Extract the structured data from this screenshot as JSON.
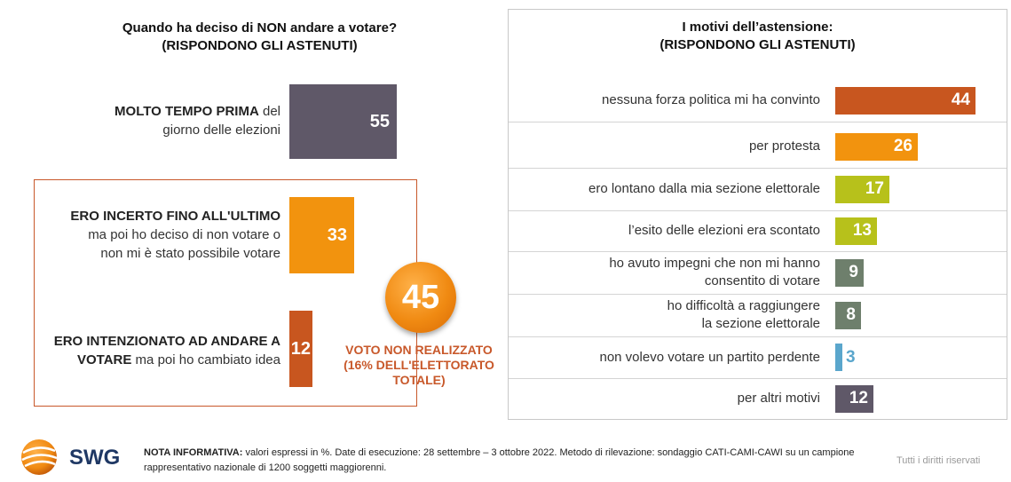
{
  "left_title": [
    "Quando ha deciso di NON andare a votare?",
    "(RISPONDONO GLI ASTENUTI)"
  ],
  "right_title": [
    "I motivi dell’astensione:",
    "(RISPONDONO GLI ASTENUTI)"
  ],
  "left_items": [
    {
      "bold": "MOLTO TEMPO PRIMA",
      "rest": " del",
      "line2": "giorno delle elezioni",
      "line3": "",
      "value": 55,
      "value_label": "55",
      "color": "#5f5868"
    },
    {
      "bold": "ERO INCERTO FINO ALL'ULTIMO",
      "rest": "",
      "line2": "ma poi ho deciso di non votare o",
      "line3": "non mi è stato possibile votare",
      "value": 33,
      "value_label": "33",
      "color": "#f2930e"
    },
    {
      "bold": "ERO INTENZIONATO AD ANDARE A",
      "rest": "",
      "line2_bold": "VOTARE",
      "line2": " ma poi ho cambiato idea",
      "line3": "",
      "value": 12,
      "value_label": "12",
      "color": "#c8561f"
    }
  ],
  "badge": {
    "value": "45",
    "caption": [
      "VOTO NON REALIZZATO",
      "(16% DELL'ELETTORATO",
      "TOTALE)"
    ]
  },
  "chart_data": {
    "type": "bar",
    "categories": [
      "nessuna forza politica mi ha convinto",
      "per protesta",
      "ero lontano dalla mia sezione elettorale",
      "l’esito delle elezioni era scontato",
      "ho avuto impegni che non mi hanno consentito di votare",
      "ho difficoltà a raggiungere la sezione elettorale",
      "non volevo votare un partito perdente",
      "per altri motivi"
    ],
    "label_lines": [
      [
        "nessuna forza politica mi ha convinto"
      ],
      [
        "per protesta"
      ],
      [
        "ero lontano dalla mia sezione elettorale"
      ],
      [
        "l’esito delle elezioni era scontato"
      ],
      [
        "ho avuto impegni che non mi hanno",
        "consentito di votare"
      ],
      [
        "ho difficoltà a raggiungere",
        "la sezione elettorale"
      ],
      [
        "non volevo votare un partito perdente"
      ],
      [
        "per altri motivi"
      ]
    ],
    "values": [
      44,
      26,
      17,
      13,
      9,
      8,
      3,
      12
    ],
    "colors": [
      "#c8561f",
      "#f2930e",
      "#b7c11b",
      "#b7c11b",
      "#6e7f6c",
      "#6e7f6c",
      "#5aa6cc",
      "#5f5868"
    ],
    "value_colors": [
      "#ffffff",
      "#ffffff",
      "#ffffff",
      "#ffffff",
      "#ffffff",
      "#ffffff",
      "#5aa6cc",
      "#ffffff"
    ]
  },
  "footer": {
    "logo": "SWG",
    "note_bold": "NOTA INFORMATIVA:",
    "note_text": " valori espressi in %. Date di esecuzione: 28 settembre – 3 ottobre 2022. Metodo di rilevazione: sondaggio CATI-CAMI-CAWI su un campione rappresentativo nazionale di 1200 soggetti maggiorenni.",
    "rights": "Tutti i diritti riservati"
  }
}
